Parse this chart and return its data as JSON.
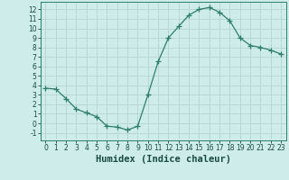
{
  "x": [
    0,
    1,
    2,
    3,
    4,
    5,
    6,
    7,
    8,
    9,
    10,
    11,
    12,
    13,
    14,
    15,
    16,
    17,
    18,
    19,
    20,
    21,
    22,
    23
  ],
  "y": [
    3.7,
    3.6,
    2.6,
    1.5,
    1.1,
    0.7,
    -0.3,
    -0.4,
    -0.7,
    -0.3,
    3.0,
    6.5,
    9.0,
    10.2,
    11.4,
    12.0,
    12.2,
    11.7,
    10.8,
    9.0,
    8.2,
    8.0,
    7.7,
    7.3
  ],
  "line_color": "#2e7d6e",
  "marker": "+",
  "marker_size": 4,
  "bg_color": "#ceecea",
  "grid_color": "#b8d8d5",
  "xlabel": "Humidex (Indice chaleur)",
  "xlabel_fontsize": 7.5,
  "xlim": [
    -0.5,
    23.5
  ],
  "ylim": [
    -1.8,
    12.8
  ],
  "yticks": [
    -1,
    0,
    1,
    2,
    3,
    4,
    5,
    6,
    7,
    8,
    9,
    10,
    11,
    12
  ],
  "xticks": [
    0,
    1,
    2,
    3,
    4,
    5,
    6,
    7,
    8,
    9,
    10,
    11,
    12,
    13,
    14,
    15,
    16,
    17,
    18,
    19,
    20,
    21,
    22,
    23
  ],
  "spine_color": "#2e7d6e",
  "label_color": "#1a4a44",
  "tick_fontsize": 5.5
}
